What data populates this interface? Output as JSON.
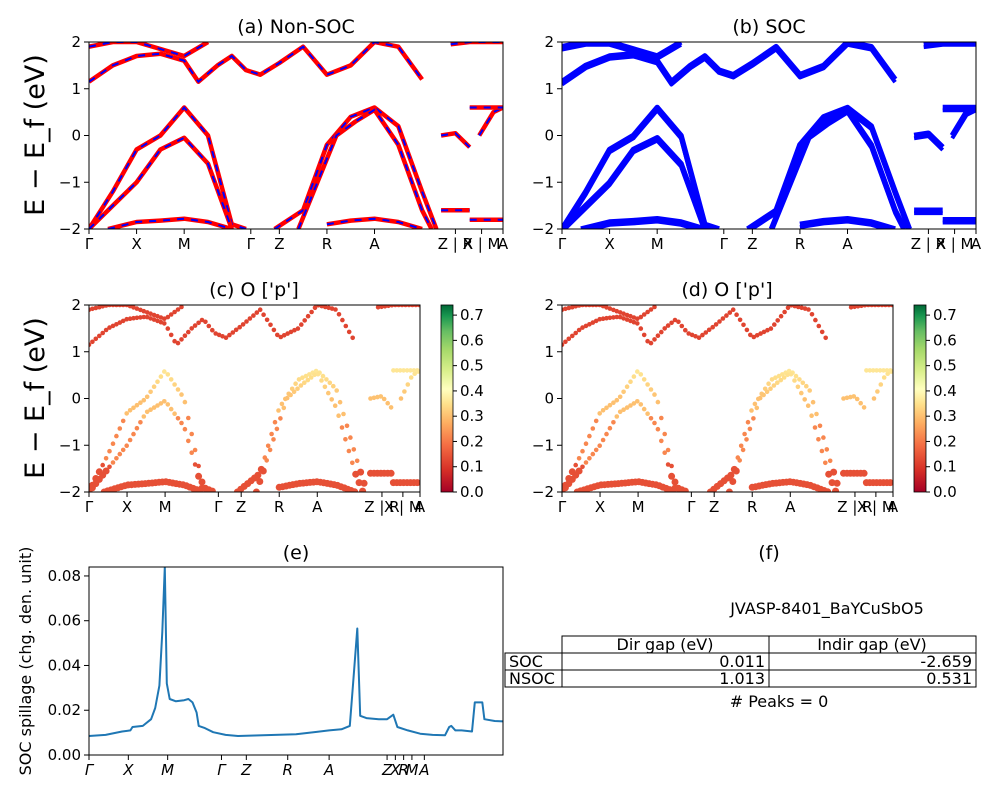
{
  "chart_data": [
    {
      "id": "a",
      "type": "line",
      "title": "(a) Non-SOC",
      "ylabel": "E − E_f (eV)",
      "ylim": [
        -2,
        2
      ],
      "yticks": [
        2,
        1,
        0,
        -1,
        -2
      ],
      "kpath_labels": [
        "Γ",
        "X",
        "M",
        "Γ",
        "Z",
        "R",
        "A",
        "Z | R",
        "X | M",
        "A"
      ],
      "series": [
        {
          "values": [
            {
              "x": 0,
              "y": -2.0
            },
            {
              "x": 0.5,
              "y": -1.2
            },
            {
              "x": 1,
              "y": -0.3
            },
            {
              "x": 1.5,
              "y": 0.0
            },
            {
              "x": 2,
              "y": 0.6
            },
            {
              "x": 2.5,
              "y": 0.0
            },
            {
              "x": 3,
              "y": -1.9
            },
            {
              "x": 3.3,
              "y": -2.0
            }
          ]
        },
        {
          "values": [
            {
              "x": 0,
              "y": -2.0
            },
            {
              "x": 0.5,
              "y": -1.5
            },
            {
              "x": 1,
              "y": -1.0
            },
            {
              "x": 1.5,
              "y": -0.3
            },
            {
              "x": 2,
              "y": -0.05
            },
            {
              "x": 2.5,
              "y": -0.6
            },
            {
              "x": 3,
              "y": -2.0
            }
          ]
        },
        {
          "values": [
            {
              "x": 0,
              "y": 1.15
            },
            {
              "x": 0.5,
              "y": 1.5
            },
            {
              "x": 1,
              "y": 1.7
            },
            {
              "x": 1.5,
              "y": 1.75
            },
            {
              "x": 2,
              "y": 1.6
            },
            {
              "x": 2.3,
              "y": 1.15
            },
            {
              "x": 2.7,
              "y": 1.5
            },
            {
              "x": 3,
              "y": 1.7
            },
            {
              "x": 3.3,
              "y": 1.4
            },
            {
              "x": 3.6,
              "y": 1.3
            },
            {
              "x": 4,
              "y": 1.55
            },
            {
              "x": 4.5,
              "y": 1.9
            },
            {
              "x": 5,
              "y": 1.3
            },
            {
              "x": 5.5,
              "y": 1.5
            },
            {
              "x": 6,
              "y": 2.0
            },
            {
              "x": 6.5,
              "y": 1.9
            },
            {
              "x": 7,
              "y": 1.2
            }
          ]
        },
        {
          "values": [
            {
              "x": 0,
              "y": 1.9
            },
            {
              "x": 0.5,
              "y": 2.0
            },
            {
              "x": 1,
              "y": 2.0
            },
            {
              "x": 2,
              "y": 1.7
            },
            {
              "x": 2.5,
              "y": 2.0
            }
          ]
        },
        {
          "values": [
            {
              "x": 3.9,
              "y": -2.0
            },
            {
              "x": 4.5,
              "y": -1.6
            },
            {
              "x": 5,
              "y": -0.2
            },
            {
              "x": 5.5,
              "y": 0.4
            },
            {
              "x": 6,
              "y": 0.6
            },
            {
              "x": 6.5,
              "y": 0.2
            },
            {
              "x": 7,
              "y": -1.2
            },
            {
              "x": 7.3,
              "y": -2.0
            }
          ]
        },
        {
          "values": [
            {
              "x": 4.4,
              "y": -2.0
            },
            {
              "x": 4.8,
              "y": -1.0
            },
            {
              "x": 5.2,
              "y": 0.0
            },
            {
              "x": 5.6,
              "y": 0.3
            },
            {
              "x": 6,
              "y": 0.55
            },
            {
              "x": 6.5,
              "y": -0.2
            },
            {
              "x": 7,
              "y": -1.6
            },
            {
              "x": 7.2,
              "y": -2.0
            }
          ]
        },
        {
          "values": [
            {
              "x": 0.4,
              "y": -2.0
            },
            {
              "x": 1,
              "y": -1.85
            },
            {
              "x": 1.5,
              "y": -1.82
            },
            {
              "x": 2,
              "y": -1.78
            },
            {
              "x": 2.5,
              "y": -1.85
            },
            {
              "x": 3,
              "y": -2.0
            }
          ]
        },
        {
          "values": [
            {
              "x": 5,
              "y": -1.9
            },
            {
              "x": 5.5,
              "y": -1.82
            },
            {
              "x": 6,
              "y": -1.78
            },
            {
              "x": 6.5,
              "y": -1.85
            },
            {
              "x": 7,
              "y": -2.0
            }
          ]
        },
        {
          "values": [
            {
              "x": 7.4,
              "y": 0.0
            },
            {
              "x": 7.7,
              "y": 0.05
            },
            {
              "x": 8,
              "y": -0.25
            }
          ]
        },
        {
          "values": [
            {
              "x": 8.2,
              "y": 0.0
            },
            {
              "x": 8.5,
              "y": 0.5
            },
            {
              "x": 8.7,
              "y": 0.6
            }
          ]
        },
        {
          "values": [
            {
              "x": 8.0,
              "y": 0.6
            },
            {
              "x": 8.7,
              "y": 0.6
            }
          ]
        },
        {
          "values": [
            {
              "x": 7.4,
              "y": -1.6
            },
            {
              "x": 8.0,
              "y": -1.6
            }
          ]
        },
        {
          "values": [
            {
              "x": 8.0,
              "y": -1.8
            },
            {
              "x": 8.7,
              "y": -1.8
            }
          ]
        },
        {
          "values": [
            {
              "x": 7.6,
              "y": 1.95
            },
            {
              "x": 8.0,
              "y": 2.0
            },
            {
              "x": 8.7,
              "y": 2.0
            }
          ]
        }
      ]
    },
    {
      "id": "b",
      "type": "line",
      "title": "(b) SOC",
      "ylabel": "",
      "ylim": [
        -2,
        2
      ],
      "yticks": [
        2,
        1,
        0,
        -1,
        -2
      ],
      "kpath_labels": [
        "Γ",
        "X",
        "M",
        "Γ",
        "Z",
        "R",
        "A",
        "Z | R",
        "X | M",
        "A"
      ]
    },
    {
      "id": "c",
      "type": "scatter",
      "title": "(c)  O ['p']",
      "ylabel": "E − E_f (eV)",
      "ylim": [
        -2,
        2
      ],
      "yticks": [
        2,
        1,
        0,
        -1,
        -2
      ],
      "kpath_labels": [
        "Γ",
        "X",
        "M",
        "Γ",
        "Z",
        "R",
        "A",
        "Z | R",
        "X | M",
        "A"
      ],
      "colorbar_ticks": [
        "0.7",
        "0.6",
        "0.5",
        "0.4",
        "0.3",
        "0.2",
        "0.1",
        "0.0"
      ],
      "colorbar_range": [
        0,
        0.74
      ]
    },
    {
      "id": "d",
      "type": "scatter",
      "title": "(d) O ['p']",
      "ylabel": "",
      "ylim": [
        -2,
        2
      ],
      "yticks": [
        2,
        1,
        0,
        -1,
        -2
      ],
      "kpath_labels": [
        "Γ",
        "X",
        "M",
        "Γ",
        "Z",
        "R",
        "A",
        "Z | R",
        "X | M",
        "A"
      ],
      "colorbar_ticks": [
        "0.7",
        "0.6",
        "0.5",
        "0.4",
        "0.3",
        "0.2",
        "0.1",
        "0.0"
      ],
      "colorbar_range": [
        0,
        0.74
      ]
    },
    {
      "id": "e",
      "type": "line",
      "title": "(e)",
      "ylabel": "SOC spillage (chg. den. unit)",
      "ylim": [
        0,
        0.084
      ],
      "yticks": [
        "0.08",
        "0.06",
        "0.04",
        "0.02",
        "0.00"
      ],
      "kpath_labels": [
        "Γ",
        "X",
        "M",
        "Γ",
        "Z",
        "R",
        "A",
        "Z",
        "X",
        "R",
        "M",
        "A"
      ],
      "series": [
        {
          "values": [
            {
              "x": 0,
              "y": 0.0085
            },
            {
              "x": 0.4,
              "y": 0.009
            },
            {
              "x": 0.8,
              "y": 0.0105
            },
            {
              "x": 1.0,
              "y": 0.011
            },
            {
              "x": 1.05,
              "y": 0.0125
            },
            {
              "x": 1.3,
              "y": 0.013
            },
            {
              "x": 1.5,
              "y": 0.016
            },
            {
              "x": 1.6,
              "y": 0.021
            },
            {
              "x": 1.7,
              "y": 0.031
            },
            {
              "x": 1.77,
              "y": 0.055
            },
            {
              "x": 1.83,
              "y": 0.084
            },
            {
              "x": 1.88,
              "y": 0.032
            },
            {
              "x": 1.95,
              "y": 0.025
            },
            {
              "x": 2.1,
              "y": 0.024
            },
            {
              "x": 2.3,
              "y": 0.0245
            },
            {
              "x": 2.4,
              "y": 0.025
            },
            {
              "x": 2.5,
              "y": 0.0235
            },
            {
              "x": 2.6,
              "y": 0.019
            },
            {
              "x": 2.65,
              "y": 0.013
            },
            {
              "x": 2.8,
              "y": 0.012
            },
            {
              "x": 3.0,
              "y": 0.0102
            },
            {
              "x": 3.3,
              "y": 0.009
            },
            {
              "x": 3.6,
              "y": 0.0085
            },
            {
              "x": 4.0,
              "y": 0.0087
            },
            {
              "x": 4.5,
              "y": 0.009
            },
            {
              "x": 5.0,
              "y": 0.0093
            },
            {
              "x": 5.5,
              "y": 0.0103
            },
            {
              "x": 5.8,
              "y": 0.011
            },
            {
              "x": 6.1,
              "y": 0.0115
            },
            {
              "x": 6.3,
              "y": 0.013
            },
            {
              "x": 6.38,
              "y": 0.032
            },
            {
              "x": 6.48,
              "y": 0.0565
            },
            {
              "x": 6.55,
              "y": 0.0175
            },
            {
              "x": 6.7,
              "y": 0.0165
            },
            {
              "x": 7.0,
              "y": 0.016
            },
            {
              "x": 7.2,
              "y": 0.016
            },
            {
              "x": 7.35,
              "y": 0.018
            },
            {
              "x": 7.45,
              "y": 0.0125
            },
            {
              "x": 7.7,
              "y": 0.011
            },
            {
              "x": 8.0,
              "y": 0.0095
            },
            {
              "x": 8.3,
              "y": 0.009
            },
            {
              "x": 8.6,
              "y": 0.0088
            },
            {
              "x": 8.7,
              "y": 0.0125
            },
            {
              "x": 8.75,
              "y": 0.013
            },
            {
              "x": 8.85,
              "y": 0.011
            },
            {
              "x": 9.0,
              "y": 0.011
            },
            {
              "x": 9.25,
              "y": 0.0105
            },
            {
              "x": 9.32,
              "y": 0.0235
            },
            {
              "x": 9.5,
              "y": 0.0235
            },
            {
              "x": 9.55,
              "y": 0.016
            },
            {
              "x": 9.8,
              "y": 0.0152
            },
            {
              "x": 10.0,
              "y": 0.015
            }
          ]
        }
      ]
    }
  ],
  "panel_f": {
    "title": "(f)",
    "material": "JVASP-8401_BaYCuSbO5",
    "table": {
      "headers": [
        "Dir gap (eV)",
        "Indir gap (eV)"
      ],
      "rows": [
        {
          "label": "SOC",
          "dir": "0.011",
          "indir": "-2.659"
        },
        {
          "label": "NSOC",
          "dir": "1.013",
          "indir": "0.531"
        }
      ]
    },
    "peaks": "# Peaks = 0"
  },
  "colors": {
    "nonsoc_red": "#ff0000",
    "nonsoc_blue": "#0000ff",
    "soc_blue": "#0000ff",
    "spillage": "#1f77b4"
  }
}
